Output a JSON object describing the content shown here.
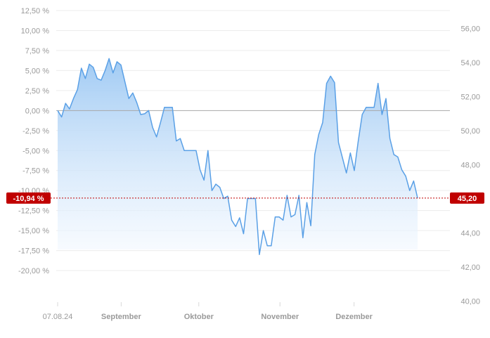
{
  "chart_data": {
    "type": "area",
    "title": "",
    "xlabel": "",
    "ylabel": "",
    "left_axis": {
      "unit": "percent",
      "ylim": [
        -22.5,
        12.5
      ],
      "ticks": [
        "12,50 %",
        "10,00 %",
        "7,50 %",
        "5,00 %",
        "2,50 %",
        "0,00 %",
        "-2,50 %",
        "-5,00 %",
        "-7,50 %",
        "-10,00 %",
        "-12,50 %",
        "-15,00 %",
        "-17,50 %",
        "-20,00 %"
      ],
      "tick_values": [
        12.5,
        10,
        7.5,
        5,
        2.5,
        0,
        -2.5,
        -5,
        -7.5,
        -10,
        -12.5,
        -15,
        -17.5,
        -20
      ]
    },
    "right_axis": {
      "unit": "price",
      "ylim": [
        40,
        56
      ],
      "ticks": [
        "56,00",
        "54,00",
        "52,00",
        "50,00",
        "48,00",
        "46,00",
        "44,00",
        "42,00",
        "40,00"
      ],
      "tick_values": [
        56,
        54,
        52,
        50,
        48,
        46,
        44,
        42,
        40
      ]
    },
    "x_labels": [
      {
        "label": "07.08.24",
        "index": 0,
        "style": "normal"
      },
      {
        "label": "September",
        "index": 18,
        "style": "month"
      },
      {
        "label": "Oktober",
        "index": 40,
        "style": "month"
      },
      {
        "label": "November",
        "index": 63,
        "style": "month"
      },
      {
        "label": "Dezember",
        "index": 84,
        "style": "month"
      }
    ],
    "x_range": [
      0,
      102
    ],
    "series": [
      {
        "values": [
          0.0,
          -0.8,
          0.9,
          0.2,
          1.5,
          2.6,
          5.3,
          4.0,
          5.8,
          5.4,
          4.0,
          3.8,
          5.0,
          6.5,
          4.7,
          6.1,
          5.7,
          3.6,
          1.5,
          2.2,
          1.0,
          -0.5,
          -0.4,
          0.0,
          -2.1,
          -3.3,
          -1.5,
          0.4,
          0.4,
          0.4,
          -3.8,
          -3.5,
          -5.0,
          -5.0,
          -5.0,
          -5.0,
          -7.4,
          -8.7,
          -5.0,
          -10.0,
          -9.2,
          -9.6,
          -11.0,
          -10.7,
          -13.7,
          -14.5,
          -13.4,
          -15.4,
          -11.0,
          -11.0,
          -11.0,
          -18.0,
          -15.0,
          -16.9,
          -16.9,
          -13.3,
          -13.3,
          -13.7,
          -10.6,
          -13.3,
          -13.0,
          -10.6,
          -15.9,
          -11.5,
          -14.4,
          -5.5,
          -3.0,
          -1.5,
          3.4,
          4.3,
          3.5,
          -4.0,
          -5.9,
          -7.8,
          -5.3,
          -7.5,
          -3.8,
          -0.5,
          0.4,
          0.4,
          0.4,
          3.4,
          -0.5,
          1.5,
          -3.5,
          -5.5,
          -5.8,
          -7.4,
          -8.2,
          -10.0,
          -8.8,
          -10.94
        ],
        "color": "#5aa0e6"
      }
    ],
    "last_value": {
      "percent_label": "-10,94 %",
      "price_label": "45,20",
      "percent": -10.94,
      "price": 45.2
    },
    "reference_line": 0,
    "grid": true,
    "colors": {
      "line": "#5aa0e6",
      "fill_top": "#9cc8f3",
      "fill_bottom": "#f4f9ff",
      "badge": "#c00000",
      "zero_line": "#a8a8a8"
    }
  }
}
